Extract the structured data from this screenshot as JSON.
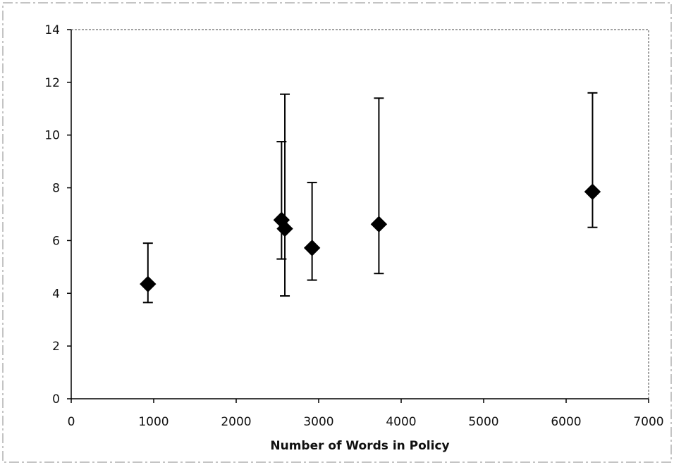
{
  "chart_data": {
    "type": "scatter",
    "title": "",
    "xlabel": "Number of Words in Policy",
    "ylabel": "",
    "xlim": [
      0,
      7000
    ],
    "ylim": [
      0,
      14
    ],
    "x_ticks": [
      0,
      1000,
      2000,
      3000,
      4000,
      5000,
      6000,
      7000
    ],
    "y_ticks": [
      0,
      2,
      4,
      6,
      8,
      10,
      12,
      14
    ],
    "x_tick_labels": [
      "0",
      "1000",
      "2000",
      "3000",
      "4000",
      "5000",
      "6000",
      "7000"
    ],
    "y_tick_labels": [
      "0",
      "2",
      "4",
      "6",
      "8",
      "10",
      "12",
      "14"
    ],
    "grid": false,
    "legend": "none",
    "marker": "diamond",
    "error_bars": true,
    "points": [
      {
        "x": 930,
        "y": 4.35,
        "low": 3.65,
        "high": 5.9
      },
      {
        "x": 2550,
        "y": 6.78,
        "low": 5.3,
        "high": 9.75
      },
      {
        "x": 2590,
        "y": 6.45,
        "low": 3.9,
        "high": 11.55
      },
      {
        "x": 2920,
        "y": 5.72,
        "low": 4.5,
        "high": 8.2
      },
      {
        "x": 3730,
        "y": 6.62,
        "low": 4.75,
        "high": 11.4
      },
      {
        "x": 6320,
        "y": 7.85,
        "low": 6.5,
        "high": 11.6
      }
    ]
  }
}
